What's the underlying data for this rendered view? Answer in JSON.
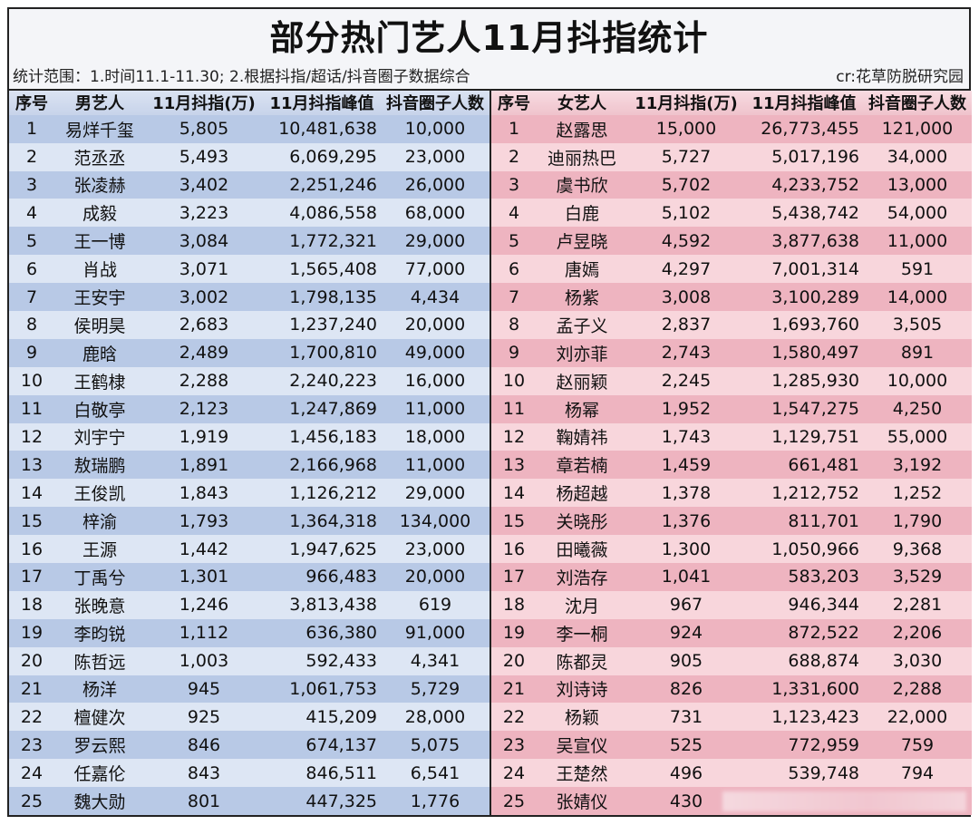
{
  "title": "部分热门艺人11月抖指统计",
  "subtitle": "统计范围：1.时间11.1-11.30; 2.根据抖指/超话/抖音圈子数据综合",
  "credit": "cr:花草防脱研究园",
  "colors": {
    "male_row_dark": "#b8c9e6",
    "male_row_light": "#dde6f4",
    "female_row_dark": "#eeb4c0",
    "female_row_light": "#f8d6dc"
  },
  "male": {
    "headers": [
      "序号",
      "男艺人",
      "11月抖指(万)",
      "11月抖指峰值",
      "抖音圈子人数"
    ],
    "rows": [
      [
        "1",
        "易烊千玺",
        "5,805",
        "10,481,638",
        "10,000"
      ],
      [
        "2",
        "范丞丞",
        "5,493",
        "6,069,295",
        "23,000"
      ],
      [
        "3",
        "张凌赫",
        "3,402",
        "2,251,246",
        "26,000"
      ],
      [
        "4",
        "成毅",
        "3,223",
        "4,086,558",
        "68,000"
      ],
      [
        "5",
        "王一博",
        "3,084",
        "1,772,321",
        "29,000"
      ],
      [
        "6",
        "肖战",
        "3,071",
        "1,565,408",
        "77,000"
      ],
      [
        "7",
        "王安宇",
        "3,002",
        "1,798,135",
        "4,434"
      ],
      [
        "8",
        "侯明昊",
        "2,683",
        "1,237,240",
        "20,000"
      ],
      [
        "9",
        "鹿晗",
        "2,489",
        "1,700,810",
        "49,000"
      ],
      [
        "10",
        "王鹤棣",
        "2,288",
        "2,240,223",
        "16,000"
      ],
      [
        "11",
        "白敬亭",
        "2,123",
        "1,247,869",
        "11,000"
      ],
      [
        "12",
        "刘宇宁",
        "1,919",
        "1,456,183",
        "18,000"
      ],
      [
        "13",
        "敖瑞鹏",
        "1,891",
        "2,166,968",
        "11,000"
      ],
      [
        "14",
        "王俊凯",
        "1,843",
        "1,126,212",
        "29,000"
      ],
      [
        "15",
        "梓渝",
        "1,793",
        "1,364,318",
        "134,000"
      ],
      [
        "16",
        "王源",
        "1,442",
        "1,947,625",
        "23,000"
      ],
      [
        "17",
        "丁禹兮",
        "1,301",
        "966,483",
        "20,000"
      ],
      [
        "18",
        "张晚意",
        "1,246",
        "3,813,438",
        "619"
      ],
      [
        "19",
        "李昀锐",
        "1,112",
        "636,380",
        "91,000"
      ],
      [
        "20",
        "陈哲远",
        "1,003",
        "592,433",
        "4,341"
      ],
      [
        "21",
        "杨洋",
        "945",
        "1,061,753",
        "5,729"
      ],
      [
        "22",
        "檀健次",
        "925",
        "415,209",
        "28,000"
      ],
      [
        "23",
        "罗云熙",
        "846",
        "674,137",
        "5,075"
      ],
      [
        "24",
        "任嘉伦",
        "843",
        "846,511",
        "6,541"
      ],
      [
        "25",
        "魏大勋",
        "801",
        "447,325",
        "1,776"
      ]
    ]
  },
  "female": {
    "headers": [
      "序号",
      "女艺人",
      "11月抖指(万)",
      "11月抖指峰值",
      "抖音圈子人数"
    ],
    "rows": [
      [
        "1",
        "赵露思",
        "15,000",
        "26,773,455",
        "121,000"
      ],
      [
        "2",
        "迪丽热巴",
        "5,727",
        "5,017,196",
        "34,000"
      ],
      [
        "3",
        "虞书欣",
        "5,702",
        "4,233,752",
        "13,000"
      ],
      [
        "4",
        "白鹿",
        "5,102",
        "5,438,742",
        "54,000"
      ],
      [
        "5",
        "卢昱晓",
        "4,592",
        "3,877,638",
        "11,000"
      ],
      [
        "6",
        "唐嫣",
        "4,297",
        "7,001,314",
        "591"
      ],
      [
        "7",
        "杨紫",
        "3,008",
        "3,100,289",
        "14,000"
      ],
      [
        "8",
        "孟子义",
        "2,837",
        "1,693,760",
        "3,505"
      ],
      [
        "9",
        "刘亦菲",
        "2,743",
        "1,580,497",
        "891"
      ],
      [
        "10",
        "赵丽颖",
        "2,245",
        "1,285,930",
        "10,000"
      ],
      [
        "11",
        "杨幂",
        "1,952",
        "1,547,275",
        "4,250"
      ],
      [
        "12",
        "鞠婧祎",
        "1,743",
        "1,129,751",
        "55,000"
      ],
      [
        "13",
        "章若楠",
        "1,459",
        "661,481",
        "3,192"
      ],
      [
        "14",
        "杨超越",
        "1,378",
        "1,212,752",
        "1,252"
      ],
      [
        "15",
        "关晓彤",
        "1,376",
        "811,701",
        "1,790"
      ],
      [
        "16",
        "田曦薇",
        "1,300",
        "1,050,966",
        "9,368"
      ],
      [
        "17",
        "刘浩存",
        "1,041",
        "583,203",
        "3,529"
      ],
      [
        "18",
        "沈月",
        "967",
        "946,344",
        "2,281"
      ],
      [
        "19",
        "李一桐",
        "924",
        "872,522",
        "2,206"
      ],
      [
        "20",
        "陈都灵",
        "905",
        "688,874",
        "3,030"
      ],
      [
        "21",
        "刘诗诗",
        "826",
        "1,331,600",
        "2,288"
      ],
      [
        "22",
        "杨颖",
        "731",
        "1,123,423",
        "22,000"
      ],
      [
        "23",
        "吴宣仪",
        "525",
        "772,959",
        "759"
      ],
      [
        "24",
        "王楚然",
        "496",
        "539,748",
        "794"
      ],
      [
        "25",
        "张婧仪",
        "430",
        "",
        ""
      ]
    ]
  }
}
